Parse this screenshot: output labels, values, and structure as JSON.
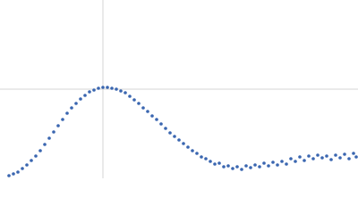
{
  "chart_data": {
    "type": "scatter",
    "x": [
      10,
      15,
      20,
      25,
      30,
      35,
      40,
      45,
      50,
      55,
      60,
      65,
      70,
      75,
      80,
      85,
      90,
      95,
      100,
      105,
      110,
      115,
      120,
      125,
      130,
      135,
      140,
      145,
      150,
      155,
      160,
      165,
      170,
      175,
      180,
      185,
      190,
      195,
      200,
      205,
      210,
      215,
      220,
      225,
      230,
      235,
      240,
      245,
      250,
      255,
      260,
      265,
      270,
      275,
      280,
      285,
      290,
      295,
      300,
      305,
      310,
      315,
      320,
      325,
      330,
      335,
      340,
      345,
      350,
      355,
      360,
      365,
      370,
      375,
      380,
      385,
      390,
      395,
      398
    ],
    "series": [
      {
        "color": "#3a66b0",
        "values": [
          3,
          5,
          7,
          11,
          15,
          20,
          25,
          31,
          38,
          45,
          52,
          59,
          66,
          73,
          79,
          84,
          89,
          93,
          97,
          99,
          101,
          102,
          102,
          101,
          100,
          98,
          96,
          92,
          88,
          84,
          79,
          75,
          70,
          66,
          61,
          56,
          51,
          47,
          43,
          39,
          35,
          31,
          28,
          24,
          22,
          19,
          16,
          17,
          13,
          14,
          11,
          13,
          10,
          14,
          12,
          15,
          13,
          17,
          14,
          18,
          15,
          19,
          16,
          22,
          19,
          24,
          20,
          25,
          22,
          26,
          23,
          25,
          21,
          26,
          23,
          27,
          22,
          28,
          24
        ]
      }
    ],
    "xlim": [
      0,
      400
    ],
    "ylim": [
      0,
      200
    ],
    "xticks": [
      115
    ],
    "yticks": [
      100
    ],
    "grid": true
  }
}
